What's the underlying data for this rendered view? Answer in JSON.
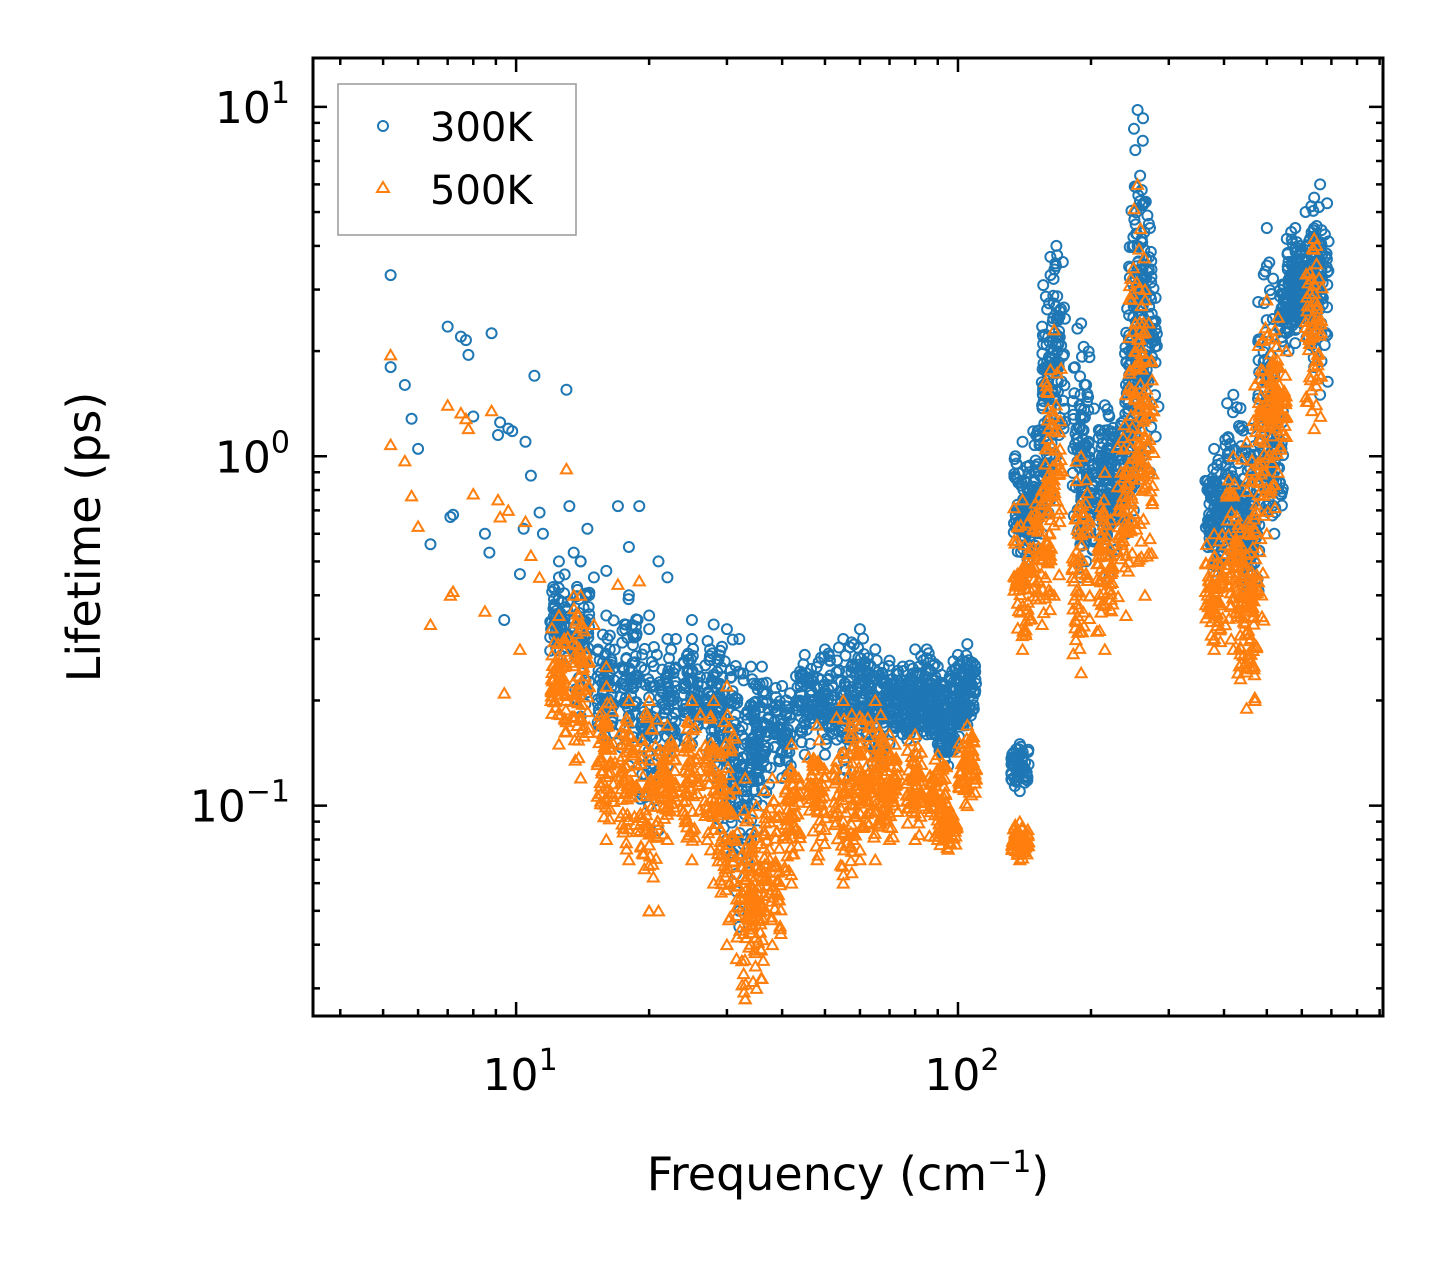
{
  "chart_data": {
    "type": "scatter",
    "title": "",
    "xlabel": "Frequency (cm",
    "xlabel_sup": "−1",
    "xlabel_end": ")",
    "ylabel": "Lifetime (ps)",
    "xscale": "log",
    "yscale": "log",
    "xlim": [
      3.47,
      916
    ],
    "ylim": [
      0.025,
      13.8
    ],
    "grid": false,
    "legend_position": "top-left",
    "x_ticks": [
      {
        "value": 10,
        "base": "10",
        "exp": "1"
      },
      {
        "value": 100,
        "base": "10",
        "exp": "2"
      }
    ],
    "y_ticks": [
      {
        "value": 0.1,
        "base": "10",
        "exp": "−1"
      },
      {
        "value": 1,
        "base": "10",
        "exp": "0"
      },
      {
        "value": 10,
        "base": "10",
        "exp": "1"
      }
    ],
    "series": [
      {
        "name": "300K",
        "color": "#1f77b4",
        "marker": "circle",
        "points": [
          [
            5.2,
            3.3
          ],
          [
            5.2,
            1.8
          ],
          [
            5.6,
            1.6
          ],
          [
            5.8,
            1.28
          ],
          [
            6.0,
            1.05
          ],
          [
            6.4,
            0.56
          ],
          [
            7.0,
            2.35
          ],
          [
            7.1,
            0.67
          ],
          [
            7.2,
            0.68
          ],
          [
            7.5,
            2.2
          ],
          [
            7.7,
            2.15
          ],
          [
            7.8,
            1.95
          ],
          [
            8.0,
            1.3
          ],
          [
            8.5,
            0.6
          ],
          [
            8.7,
            0.53
          ],
          [
            8.8,
            2.25
          ],
          [
            9.1,
            1.15
          ],
          [
            9.2,
            1.25
          ],
          [
            9.4,
            0.34
          ],
          [
            9.6,
            1.2
          ],
          [
            9.8,
            1.18
          ],
          [
            10.2,
            0.46
          ],
          [
            10.4,
            0.62
          ],
          [
            10.5,
            1.1
          ],
          [
            10.8,
            0.88
          ],
          [
            11.0,
            1.7
          ],
          [
            11.3,
            0.69
          ],
          [
            11.5,
            0.6
          ],
          [
            12.0,
            0.32
          ],
          [
            12.5,
            0.45
          ],
          [
            13.0,
            1.55
          ],
          [
            13.2,
            0.72
          ],
          [
            13.5,
            0.53
          ],
          [
            14.0,
            0.5
          ],
          [
            14.5,
            0.62
          ],
          [
            15.0,
            0.45
          ],
          [
            16.0,
            0.47
          ],
          [
            17.0,
            0.72
          ],
          [
            18.0,
            0.55
          ],
          [
            19.0,
            0.72
          ],
          [
            20.0,
            0.35
          ],
          [
            21.0,
            0.5
          ],
          [
            22.0,
            0.45
          ],
          [
            23.0,
            0.3
          ],
          [
            25.0,
            0.34
          ],
          [
            32.0,
            0.045
          ],
          [
            21.0,
            0.085
          ]
        ],
        "bands": [
          [
            12.5,
            0.22,
            0.5
          ],
          [
            14,
            0.18,
            0.5
          ],
          [
            16,
            0.15,
            0.35
          ],
          [
            18,
            0.13,
            0.4
          ],
          [
            20,
            0.1,
            0.32
          ],
          [
            22,
            0.13,
            0.3
          ],
          [
            25,
            0.15,
            0.3
          ],
          [
            28,
            0.12,
            0.33
          ],
          [
            30,
            0.08,
            0.32
          ],
          [
            32,
            0.05,
            0.3
          ],
          [
            34,
            0.08,
            0.25
          ],
          [
            36,
            0.1,
            0.25
          ],
          [
            40,
            0.12,
            0.22
          ],
          [
            45,
            0.14,
            0.27
          ],
          [
            50,
            0.14,
            0.28
          ],
          [
            55,
            0.12,
            0.3
          ],
          [
            60,
            0.15,
            0.32
          ],
          [
            65,
            0.12,
            0.28
          ],
          [
            70,
            0.15,
            0.26
          ],
          [
            75,
            0.16,
            0.25
          ],
          [
            80,
            0.14,
            0.28
          ],
          [
            85,
            0.16,
            0.28
          ],
          [
            90,
            0.15,
            0.25
          ],
          [
            95,
            0.13,
            0.2
          ],
          [
            100,
            0.15,
            0.27
          ],
          [
            105,
            0.17,
            0.29
          ],
          [
            138,
            0.11,
            0.15
          ],
          [
            140,
            0.45,
            1.1
          ],
          [
            145,
            0.5,
            0.9
          ],
          [
            155,
            0.6,
            1.4
          ],
          [
            162,
            0.9,
            3.3
          ],
          [
            167,
            1.0,
            4.0
          ],
          [
            190,
            0.45,
            2.4
          ],
          [
            195,
            0.5,
            1.6
          ],
          [
            215,
            0.6,
            1.4
          ],
          [
            220,
            0.45,
            1.3
          ],
          [
            240,
            0.6,
            1.6
          ],
          [
            250,
            0.7,
            4.0
          ],
          [
            255,
            0.9,
            9.8
          ],
          [
            262,
            1.0,
            8.0
          ],
          [
            272,
            0.9,
            4.5
          ],
          [
            380,
            0.4,
            1.05
          ],
          [
            385,
            0.5,
            0.9
          ],
          [
            420,
            0.5,
            1.5
          ],
          [
            445,
            0.4,
            0.8
          ],
          [
            460,
            0.4,
            1.2
          ],
          [
            500,
            0.7,
            4.5
          ],
          [
            520,
            0.6,
            1.5
          ],
          [
            560,
            2.0,
            3.2
          ],
          [
            580,
            2.3,
            4.5
          ],
          [
            595,
            2.5,
            4.0
          ],
          [
            640,
            1.8,
            5.5
          ],
          [
            660,
            1.5,
            6.0
          ]
        ]
      },
      {
        "name": "500K",
        "color": "#ff7f0e",
        "marker": "triangle",
        "points": [
          [
            5.2,
            1.95
          ],
          [
            5.2,
            1.08
          ],
          [
            5.6,
            0.97
          ],
          [
            5.8,
            0.77
          ],
          [
            6.0,
            0.63
          ],
          [
            6.4,
            0.33
          ],
          [
            7.0,
            1.4
          ],
          [
            7.1,
            0.4
          ],
          [
            7.2,
            0.41
          ],
          [
            7.5,
            1.33
          ],
          [
            7.7,
            1.28
          ],
          [
            7.8,
            1.2
          ],
          [
            8.0,
            0.78
          ],
          [
            8.5,
            0.36
          ],
          [
            8.8,
            1.35
          ],
          [
            9.1,
            0.75
          ],
          [
            9.2,
            0.67
          ],
          [
            9.4,
            0.21
          ],
          [
            9.6,
            0.7
          ],
          [
            10.2,
            0.28
          ],
          [
            10.5,
            0.65
          ],
          [
            10.8,
            0.52
          ],
          [
            11.3,
            0.45
          ],
          [
            12.0,
            0.2
          ],
          [
            13.0,
            0.92
          ],
          [
            13.5,
            0.4
          ],
          [
            15.0,
            0.33
          ],
          [
            17.0,
            0.43
          ],
          [
            19.0,
            0.44
          ],
          [
            20.0,
            0.05
          ],
          [
            21.0,
            0.05
          ],
          [
            33.0,
            0.028
          ],
          [
            36.0,
            0.032
          ]
        ],
        "bands": [
          [
            12.5,
            0.15,
            0.35
          ],
          [
            14,
            0.12,
            0.4
          ],
          [
            16,
            0.08,
            0.25
          ],
          [
            18,
            0.07,
            0.2
          ],
          [
            20,
            0.05,
            0.2
          ],
          [
            22,
            0.08,
            0.17
          ],
          [
            25,
            0.07,
            0.2
          ],
          [
            28,
            0.06,
            0.2
          ],
          [
            30,
            0.04,
            0.22
          ],
          [
            33,
            0.028,
            0.12
          ],
          [
            35,
            0.03,
            0.1
          ],
          [
            38,
            0.04,
            0.12
          ],
          [
            42,
            0.06,
            0.15
          ],
          [
            48,
            0.07,
            0.17
          ],
          [
            55,
            0.06,
            0.2
          ],
          [
            60,
            0.07,
            0.18
          ],
          [
            65,
            0.07,
            0.2
          ],
          [
            70,
            0.08,
            0.16
          ],
          [
            80,
            0.08,
            0.16
          ],
          [
            90,
            0.08,
            0.14
          ],
          [
            95,
            0.075,
            0.1
          ],
          [
            105,
            0.1,
            0.17
          ],
          [
            138,
            0.07,
            0.09
          ],
          [
            140,
            0.28,
            0.75
          ],
          [
            155,
            0.33,
            0.8
          ],
          [
            165,
            0.4,
            2.3
          ],
          [
            190,
            0.24,
            1.0
          ],
          [
            215,
            0.28,
            0.9
          ],
          [
            240,
            0.35,
            1.5
          ],
          [
            255,
            0.5,
            6.0
          ],
          [
            265,
            0.4,
            3.0
          ],
          [
            380,
            0.28,
            0.6
          ],
          [
            420,
            0.28,
            1.0
          ],
          [
            450,
            0.19,
            0.6
          ],
          [
            470,
            0.2,
            1.6
          ],
          [
            500,
            0.6,
            2.8
          ],
          [
            530,
            0.9,
            2.5
          ],
          [
            640,
            1.2,
            4.2
          ]
        ]
      }
    ]
  }
}
